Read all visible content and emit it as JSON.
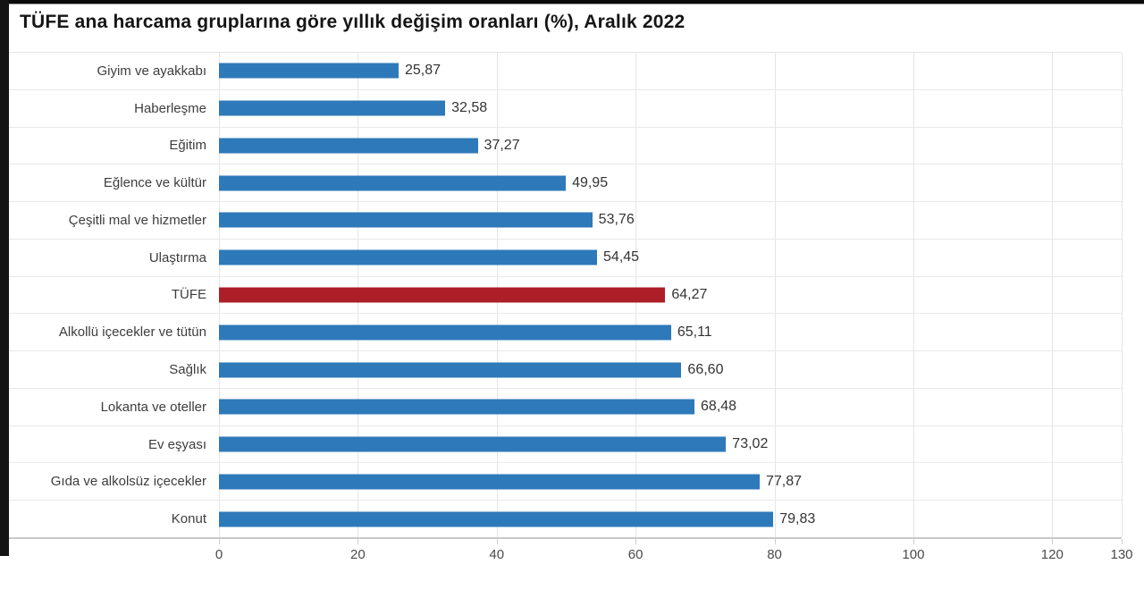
{
  "chart_data": {
    "type": "bar",
    "orientation": "horizontal",
    "title": "TÜFE ana harcama gruplarına göre yıllık değişim oranları (%), Aralık 2022",
    "categories": [
      "Giyim ve ayakkabı",
      "Haberleşme",
      "Eğitim",
      "Eğlence ve kültür",
      "Çeşitli mal ve hizmetler",
      "Ulaştırma",
      "TÜFE",
      "Alkollü içecekler ve tütün",
      "Sağlık",
      "Lokanta ve oteller",
      "Ev eşyası",
      "Gıda ve alkolsüz içecekler",
      "Konut"
    ],
    "values": [
      25.87,
      32.58,
      37.27,
      49.95,
      53.76,
      54.45,
      64.27,
      65.11,
      66.6,
      68.48,
      73.02,
      77.87,
      79.83
    ],
    "value_labels": [
      "25,87",
      "32,58",
      "37,27",
      "49,95",
      "53,76",
      "54,45",
      "64,27",
      "65,11",
      "66,60",
      "68,48",
      "73,02",
      "77,87",
      "79,83"
    ],
    "highlight_category": "TÜFE",
    "xlim": [
      0,
      130
    ],
    "x_ticks": [
      0,
      20,
      40,
      60,
      80,
      100,
      120,
      130
    ],
    "grid": true,
    "legend": "none",
    "colors": {
      "bar": "#2e79b9",
      "highlight": "#ad1f28",
      "grid": "#e6e6e6",
      "axis": "#c9c9c9",
      "title": "#151515",
      "category_label": "#3d3d3d",
      "value_label": "#333333",
      "tick_label": "#4a4a4a",
      "frame": "#0a0a0a"
    }
  }
}
